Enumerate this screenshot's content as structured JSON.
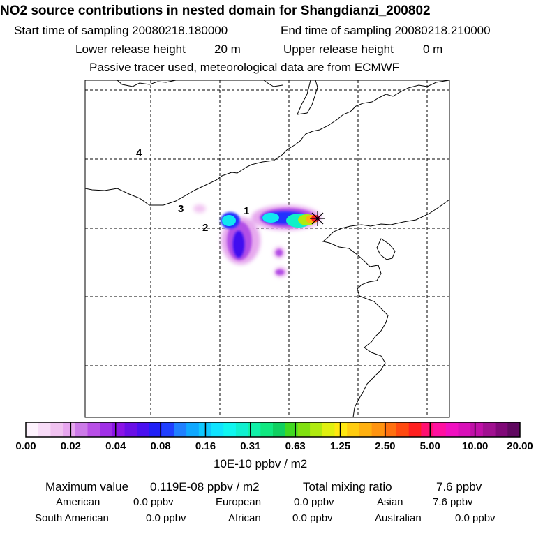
{
  "header": {
    "title": "NO2 source contributions in nested domain for Shangdianzi_200802",
    "start_label": "Start time of sampling 20080218.180000",
    "end_label": "End time of sampling 20080218.210000",
    "lower_label": "Lower release height",
    "lower_value": "20 m",
    "upper_label": "Upper release height",
    "upper_value": "0 m",
    "tracer_note": "Passive tracer used, meteorological data are from ECMWF"
  },
  "map": {
    "region_labels": [
      "1",
      "2",
      "3",
      "4"
    ],
    "station_marker": "receptor-star-icon"
  },
  "colorbar": {
    "tick_labels": [
      "0.00",
      "0.02",
      "0.04",
      "0.08",
      "0.16",
      "0.31",
      "0.63",
      "1.25",
      "2.50",
      "5.00",
      "10.00",
      "20.00"
    ],
    "unit": "10E-10 ppbv / m2",
    "colors": [
      "#fdf2fd",
      "#f8dcf8",
      "#f0c2f0",
      "#e7a6ef",
      "#cc7ae8",
      "#b84fe6",
      "#a02fe6",
      "#8a14e6",
      "#6a10e6",
      "#4a10f0",
      "#2020f6",
      "#2040ff",
      "#2080ff",
      "#10a8ff",
      "#10c8ff",
      "#10e4ff",
      "#10f6f0",
      "#10f0d0",
      "#10f0a8",
      "#10e880",
      "#10d060",
      "#40d820",
      "#80e010",
      "#b0ea10",
      "#e0f010",
      "#ffe810",
      "#ffcc10",
      "#ffb010",
      "#ff9410",
      "#ff7010",
      "#ff4a10",
      "#ff2020",
      "#ff1070",
      "#ff10a0",
      "#f010c0",
      "#d810b8",
      "#c010a8",
      "#a01090",
      "#800878",
      "#600860"
    ]
  },
  "summary": {
    "max_label": "Maximum value",
    "max_value": "0.119E-08 ppbv / m2",
    "total_label": "Total mixing ratio",
    "total_value": "7.6 ppbv",
    "regions": [
      {
        "name": "American",
        "value": "0.0 ppbv"
      },
      {
        "name": "European",
        "value": "0.0 ppbv"
      },
      {
        "name": "Asian",
        "value": "7.6 ppbv"
      },
      {
        "name": "South American",
        "value": "0.0 ppbv"
      },
      {
        "name": "African",
        "value": "0.0 ppbv"
      },
      {
        "name": "Australian",
        "value": "0.0 ppbv"
      }
    ]
  }
}
